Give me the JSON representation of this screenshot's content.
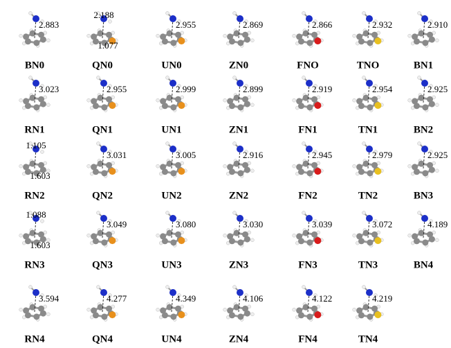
{
  "cells": [
    {
      "label": "BN0",
      "distances": [
        "2.883"
      ]
    },
    {
      "label": "QN0",
      "distances": [
        "2.188",
        "1.077"
      ],
      "hetero": "#e8901c"
    },
    {
      "label": "UN0",
      "distances": [
        "2.955"
      ],
      "hetero": "#e8901c"
    },
    {
      "label": "ZN0",
      "distances": [
        "2.869"
      ]
    },
    {
      "label": "FNO",
      "distances": [
        "2.866"
      ],
      "hetero": "#d81c1c"
    },
    {
      "label": "TNO",
      "distances": [
        "2.932"
      ],
      "hetero": "#e8c020"
    },
    {
      "label": "BN1",
      "distances": [
        "2.910"
      ]
    },
    {
      "label": "RN1",
      "distances": [
        "3.023"
      ]
    },
    {
      "label": "QN1",
      "distances": [
        "2.955"
      ],
      "hetero": "#e8901c"
    },
    {
      "label": "UN1",
      "distances": [
        "2.999"
      ],
      "hetero": "#e8901c"
    },
    {
      "label": "ZN1",
      "distances": [
        "2.899"
      ]
    },
    {
      "label": "FN1",
      "distances": [
        "2.919"
      ],
      "hetero": "#d81c1c"
    },
    {
      "label": "TN1",
      "distances": [
        "2.954"
      ],
      "hetero": "#e8c020"
    },
    {
      "label": "BN2",
      "distances": [
        "2.925"
      ]
    },
    {
      "label": "RN2",
      "distances": [
        "1.105",
        "1.603"
      ]
    },
    {
      "label": "QN2",
      "distances": [
        "3.031"
      ],
      "hetero": "#e8901c"
    },
    {
      "label": "UN2",
      "distances": [
        "3.005"
      ],
      "hetero": "#e8901c"
    },
    {
      "label": "ZN2",
      "distances": [
        "2.916"
      ]
    },
    {
      "label": "FN2",
      "distances": [
        "2.945"
      ],
      "hetero": "#d81c1c"
    },
    {
      "label": "TN2",
      "distances": [
        "2.979"
      ],
      "hetero": "#e8c020"
    },
    {
      "label": "BN3",
      "distances": [
        "2.925"
      ]
    },
    {
      "label": "RN3",
      "distances": [
        "1.088",
        "1.603"
      ]
    },
    {
      "label": "QN3",
      "distances": [
        "3.049"
      ],
      "hetero": "#e8901c"
    },
    {
      "label": "UN3",
      "distances": [
        "3.080"
      ],
      "hetero": "#e8901c"
    },
    {
      "label": "ZN3",
      "distances": [
        "3.030"
      ]
    },
    {
      "label": "FN3",
      "distances": [
        "3.039"
      ],
      "hetero": "#d81c1c"
    },
    {
      "label": "TN3",
      "distances": [
        "3.072"
      ],
      "hetero": "#e8c020"
    },
    {
      "label": "BN4",
      "distances": [
        "4.189"
      ]
    },
    {
      "label": "RN4",
      "distances": [
        "3.594"
      ]
    },
    {
      "label": "QN4",
      "distances": [
        "4.277"
      ],
      "hetero": "#e8901c"
    },
    {
      "label": "UN4",
      "distances": [
        "4.349"
      ],
      "hetero": "#e8901c"
    },
    {
      "label": "ZN4",
      "distances": [
        "4.106"
      ]
    },
    {
      "label": "FN4",
      "distances": [
        "4.122"
      ],
      "hetero": "#d81c1c"
    },
    {
      "label": "TN4",
      "distances": [
        "4.219"
      ],
      "hetero": "#e8c020"
    }
  ]
}
